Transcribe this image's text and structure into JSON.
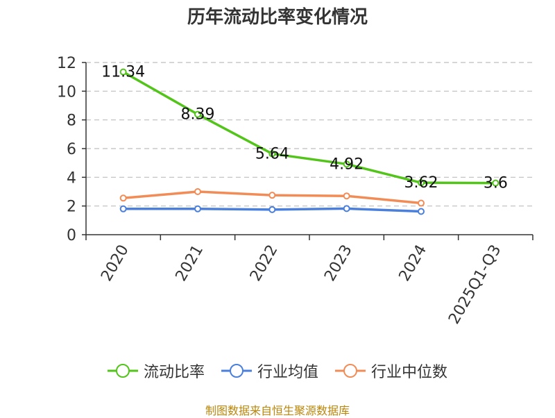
{
  "chart_data": {
    "type": "line",
    "title": "历年流动比率变化情况",
    "categories": [
      "2020",
      "2021",
      "2022",
      "2023",
      "2024",
      "2025Q1-Q3"
    ],
    "ylim": [
      0,
      12
    ],
    "yticks": [
      0,
      2,
      4,
      6,
      8,
      10,
      12
    ],
    "grid": true,
    "legend_position": "bottom",
    "series": [
      {
        "name": "流动比率",
        "color": "#52c41a",
        "values": [
          11.34,
          8.39,
          5.64,
          4.92,
          3.62,
          3.6
        ],
        "data_labels": [
          "11.34",
          "8.39",
          "5.64",
          "4.92",
          "3.62",
          "3.6"
        ]
      },
      {
        "name": "行业均值",
        "color": "#4a7fdb",
        "values": [
          1.8,
          1.8,
          1.75,
          1.82,
          1.62,
          null
        ]
      },
      {
        "name": "行业中位数",
        "color": "#f28c57",
        "values": [
          2.55,
          3.0,
          2.75,
          2.7,
          2.2,
          null
        ]
      }
    ]
  },
  "footer": {
    "source": "制图数据来自恒生聚源数据库",
    "source_color": "#b8860b"
  }
}
